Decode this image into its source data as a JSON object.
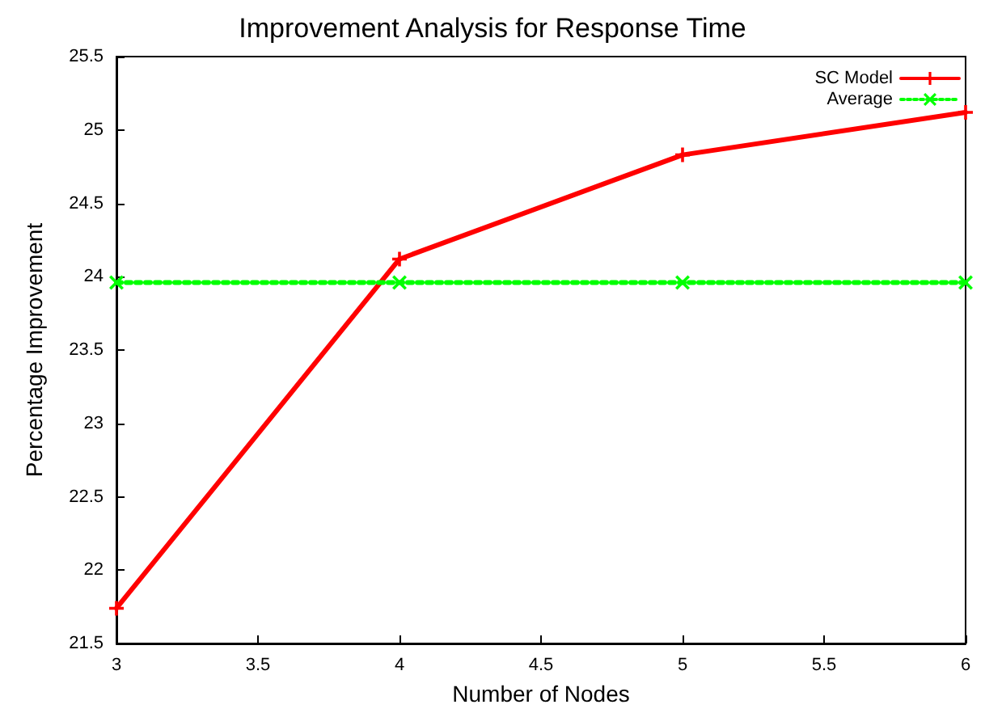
{
  "chart_data": {
    "type": "line",
    "title": "Improvement Analysis for Response Time",
    "xlabel": "Number of Nodes",
    "ylabel": "Percentage Improvement",
    "x": [
      3,
      4,
      5,
      6
    ],
    "series": [
      {
        "name": "SC Model",
        "color": "#ff0000",
        "values": [
          21.74,
          24.12,
          24.83,
          25.12
        ],
        "marker": "cross",
        "line_style": "solid"
      },
      {
        "name": "Average",
        "color": "#00ff00",
        "values": [
          23.96,
          23.96,
          23.96,
          23.96
        ],
        "marker": "cross",
        "line_style": "dotted"
      }
    ],
    "xlim": [
      3,
      6
    ],
    "xticks": [
      3,
      3.5,
      4,
      4.5,
      5,
      5.5,
      6
    ],
    "ylim": [
      21.5,
      25.5
    ],
    "yticks": [
      21.5,
      22,
      22.5,
      23,
      23.5,
      24,
      24.5,
      25,
      25.5
    ],
    "grid": false,
    "legend": "top right"
  }
}
